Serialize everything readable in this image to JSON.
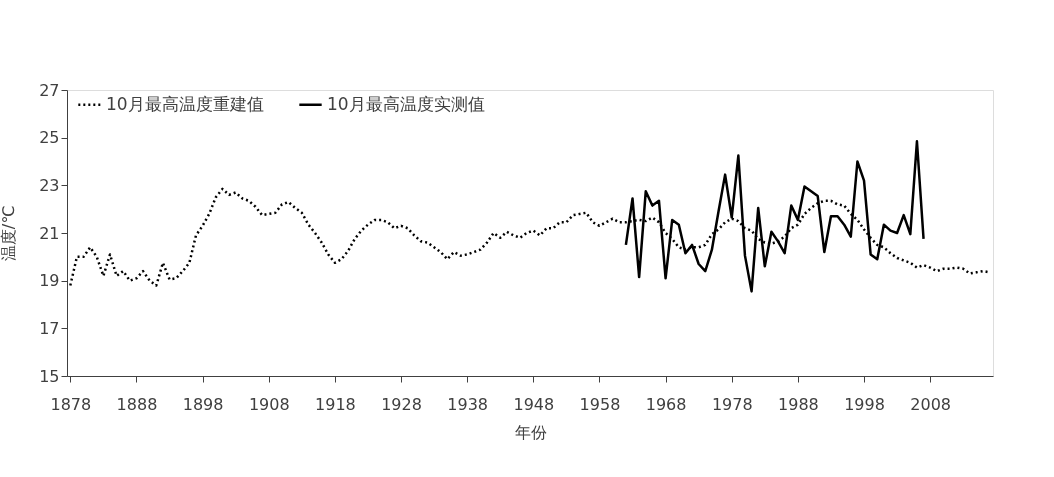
{
  "chart_data": {
    "type": "line",
    "xlabel": "年份",
    "ylabel": "温度/℃",
    "xlim": [
      1877.5,
      2017.5
    ],
    "xticks": [
      1878,
      1888,
      1898,
      1908,
      1918,
      1928,
      1938,
      1948,
      1958,
      1968,
      1978,
      1988,
      1998,
      2008
    ],
    "ylim": [
      15,
      27
    ],
    "yticks": [
      15,
      17,
      19,
      21,
      23,
      25,
      27
    ],
    "grid": false,
    "legend": "top left",
    "marker": "none",
    "series": [
      {
        "name": "10月最高温度重建值",
        "color": "#000000",
        "line_style": "dotted",
        "x": [
          1878,
          1879,
          1880,
          1881,
          1882,
          1883,
          1884,
          1885,
          1886,
          1887,
          1888,
          1889,
          1890,
          1891,
          1892,
          1893,
          1894,
          1895,
          1896,
          1897,
          1898,
          1899,
          1900,
          1901,
          1902,
          1903,
          1904,
          1905,
          1906,
          1907,
          1908,
          1909,
          1910,
          1911,
          1912,
          1913,
          1914,
          1915,
          1916,
          1917,
          1918,
          1919,
          1920,
          1921,
          1922,
          1923,
          1924,
          1925,
          1926,
          1927,
          1928,
          1929,
          1930,
          1931,
          1932,
          1933,
          1934,
          1935,
          1936,
          1937,
          1938,
          1939,
          1940,
          1941,
          1942,
          1943,
          1944,
          1945,
          1946,
          1947,
          1948,
          1949,
          1950,
          1951,
          1952,
          1953,
          1954,
          1955,
          1956,
          1957,
          1958,
          1959,
          1960,
          1961,
          1962,
          1963,
          1964,
          1965,
          1966,
          1967,
          1968,
          1969,
          1970,
          1971,
          1972,
          1973,
          1974,
          1975,
          1976,
          1977,
          1978,
          1979,
          1980,
          1981,
          1982,
          1983,
          1984,
          1985,
          1986,
          1987,
          1988,
          1989,
          1990,
          1991,
          1992,
          1993,
          1994,
          1995,
          1996,
          1997,
          1998,
          1999,
          2000,
          2001,
          2002,
          2003,
          2004,
          2005,
          2006,
          2007,
          2008,
          2009,
          2010,
          2011,
          2012,
          2013,
          2014,
          2015,
          2016,
          2017
        ],
        "values": [
          18.8,
          20.0,
          20.0,
          20.4,
          20.0,
          19.2,
          20.1,
          19.2,
          19.4,
          19.0,
          19.1,
          19.4,
          19.0,
          18.8,
          19.75,
          19.05,
          19.1,
          19.4,
          19.75,
          20.9,
          21.3,
          21.8,
          22.5,
          22.85,
          22.6,
          22.7,
          22.45,
          22.35,
          22.1,
          21.75,
          21.8,
          21.85,
          22.2,
          22.3,
          22.05,
          21.85,
          21.35,
          21.0,
          20.6,
          20.1,
          19.75,
          19.9,
          20.25,
          20.75,
          21.1,
          21.35,
          21.55,
          21.55,
          21.45,
          21.2,
          21.3,
          21.2,
          20.9,
          20.65,
          20.6,
          20.4,
          20.2,
          19.9,
          20.2,
          20.05,
          20.1,
          20.2,
          20.3,
          20.6,
          21.0,
          20.8,
          21.05,
          20.9,
          20.8,
          21.0,
          21.1,
          20.9,
          21.2,
          21.2,
          21.45,
          21.45,
          21.75,
          21.8,
          21.85,
          21.45,
          21.3,
          21.45,
          21.6,
          21.45,
          21.45,
          21.5,
          21.55,
          21.5,
          21.65,
          21.45,
          21.0,
          20.75,
          20.4,
          20.3,
          20.4,
          20.4,
          20.5,
          20.95,
          21.15,
          21.45,
          21.6,
          21.5,
          21.2,
          21.1,
          20.75,
          20.6,
          20.55,
          20.65,
          20.85,
          21.2,
          21.35,
          21.8,
          22.05,
          22.25,
          22.35,
          22.35,
          22.2,
          22.15,
          21.8,
          21.55,
          21.15,
          20.8,
          20.5,
          20.4,
          20.15,
          19.95,
          19.85,
          19.75,
          19.55,
          19.65,
          19.55,
          19.4,
          19.5,
          19.5,
          19.55,
          19.5,
          19.3,
          19.35,
          19.4,
          19.35
        ]
      },
      {
        "name": "10月最高温度实测值",
        "color": "#000000",
        "line_style": "solid",
        "x": [
          1962,
          1963,
          1964,
          1965,
          1966,
          1967,
          1968,
          1969,
          1970,
          1971,
          1972,
          1973,
          1974,
          1975,
          1976,
          1977,
          1978,
          1979,
          1980,
          1981,
          1982,
          1983,
          1984,
          1985,
          1986,
          1987,
          1988,
          1989,
          1990,
          1991,
          1992,
          1993,
          1994,
          1995,
          1996,
          1997,
          1998,
          1999,
          2000,
          2001,
          2002,
          2003,
          2004,
          2005,
          2006,
          2007
        ],
        "values": [
          20.5,
          22.45,
          19.15,
          22.75,
          22.15,
          22.35,
          19.1,
          21.55,
          21.35,
          20.15,
          20.5,
          19.7,
          19.4,
          20.3,
          21.9,
          23.45,
          21.65,
          24.25,
          20.05,
          18.55,
          22.05,
          19.6,
          21.05,
          20.65,
          20.15,
          22.15,
          21.55,
          22.95,
          22.75,
          22.55,
          20.2,
          21.7,
          21.7,
          21.35,
          20.85,
          24.0,
          23.2,
          20.1,
          19.9,
          21.35,
          21.1,
          21.0,
          21.75,
          20.95,
          24.85,
          20.75
        ]
      }
    ]
  }
}
